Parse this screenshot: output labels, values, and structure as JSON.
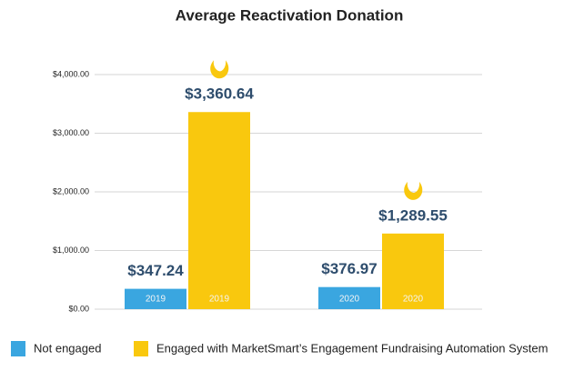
{
  "chart_data": {
    "type": "bar",
    "title": "Average Reactivation Donation",
    "categories": [
      "2019",
      "2020"
    ],
    "series": [
      {
        "name": "Not engaged",
        "color": "#3aa6e0",
        "values": [
          347.24,
          376.97
        ],
        "value_labels": [
          "$347.24",
          "$376.97"
        ]
      },
      {
        "name": "Engaged with MarketSmart’s Engagement Fundraising Automation System",
        "color": "#f9c80e",
        "values": [
          3360.64,
          1289.55
        ],
        "value_labels": [
          "$3,360.64",
          "$1,289.55"
        ]
      }
    ],
    "ylim": [
      0,
      4000
    ],
    "yticks": [
      {
        "value": 0,
        "label": "$0.00"
      },
      {
        "value": 1000,
        "label": "$1,000.00"
      },
      {
        "value": 2000,
        "label": "$2,000.00"
      },
      {
        "value": 3000,
        "label": "$3,000.00"
      },
      {
        "value": 4000,
        "label": "$4,000.00"
      }
    ],
    "grid": true,
    "legend": "bottom"
  }
}
